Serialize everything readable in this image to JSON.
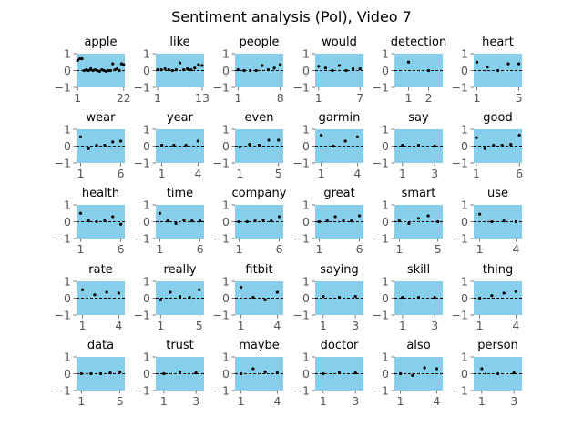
{
  "chart_data": {
    "type": "scatter",
    "title": "Sentiment analysis (Pol), Video 7",
    "colors": {
      "panel_bg": "#87ceeb",
      "point": "#000000",
      "zero_line": "#000000"
    },
    "panels": [
      {
        "title": "apple",
        "ylim": [
          -1,
          1
        ],
        "yticks": [
          -1,
          0,
          1
        ],
        "xlim": [
          0.5,
          22.5
        ],
        "xticks": [
          1,
          22
        ],
        "values": [
          0.6,
          0.7,
          0.7,
          0.0,
          0.05,
          0.0,
          0.1,
          0.0,
          0.05,
          0.0,
          -0.05,
          0.05,
          0.0,
          -0.05,
          0.0,
          0.0,
          0.4,
          0.05,
          0.1,
          0.0,
          0.4,
          0.35
        ]
      },
      {
        "title": "like",
        "ylim": [
          -1,
          1
        ],
        "yticks": [
          -1,
          0,
          1
        ],
        "xlim": [
          0.5,
          13.5
        ],
        "xticks": [
          1,
          13
        ],
        "values": [
          0.05,
          0.05,
          0.1,
          0.05,
          0.0,
          0.05,
          0.45,
          0.05,
          0.1,
          0.05,
          0.15,
          0.35,
          0.3
        ]
      },
      {
        "title": "people",
        "ylim": [
          -1,
          1
        ],
        "yticks": [
          -1,
          0,
          1
        ],
        "xlim": [
          0.5,
          8.5
        ],
        "xticks": [
          1,
          8
        ],
        "values": [
          0.05,
          0.0,
          0.0,
          0.0,
          0.3,
          0.05,
          0.15,
          0.35
        ]
      },
      {
        "title": "would",
        "ylim": [
          -1,
          1
        ],
        "yticks": [
          -1,
          0,
          1
        ],
        "xlim": [
          0.5,
          7.5
        ],
        "xticks": [
          1,
          7
        ],
        "values": [
          0.25,
          0.15,
          0.0,
          0.3,
          0.0,
          0.1,
          0.1
        ]
      },
      {
        "title": "detection",
        "ylim": [
          -1,
          1
        ],
        "yticks": [
          -1,
          0,
          1
        ],
        "xlim": [
          0.3,
          2.7
        ],
        "xticks": [
          1,
          2
        ],
        "values": [
          0.5,
          0.0
        ]
      },
      {
        "title": "heart",
        "ylim": [
          -1,
          1
        ],
        "yticks": [
          -1,
          0,
          1
        ],
        "xlim": [
          0.7,
          5.3
        ],
        "xticks": [
          1,
          5
        ],
        "values": [
          0.5,
          0.2,
          0.0,
          0.4,
          0.4
        ]
      },
      {
        "title": "wear",
        "ylim": [
          -1,
          1
        ],
        "yticks": [
          -1,
          0,
          1
        ],
        "xlim": [
          0.5,
          6.5
        ],
        "xticks": [
          1,
          6
        ],
        "values": [
          0.55,
          -0.15,
          0.05,
          0.05,
          0.25,
          0.3
        ]
      },
      {
        "title": "year",
        "ylim": [
          -1,
          1
        ],
        "yticks": [
          -1,
          0,
          1
        ],
        "xlim": [
          0.5,
          4.5
        ],
        "xticks": [
          1,
          4
        ],
        "values": [
          0.05,
          0.05,
          0.05,
          0.3
        ]
      },
      {
        "title": "even",
        "ylim": [
          -1,
          1
        ],
        "yticks": [
          -1,
          0,
          1
        ],
        "xlim": [
          0.5,
          5.5
        ],
        "xticks": [
          1,
          5
        ],
        "values": [
          -0.05,
          0.1,
          0.05,
          0.35,
          0.35
        ]
      },
      {
        "title": "garmin",
        "ylim": [
          -1,
          1
        ],
        "yticks": [
          -1,
          0,
          1
        ],
        "xlim": [
          0.5,
          4.5
        ],
        "xticks": [
          1,
          4
        ],
        "values": [
          0.65,
          0.0,
          0.3,
          0.55
        ]
      },
      {
        "title": "say",
        "ylim": [
          -1,
          1
        ],
        "yticks": [
          -1,
          0,
          1
        ],
        "xlim": [
          0.5,
          3.5
        ],
        "xticks": [
          1,
          3
        ],
        "values": [
          0.05,
          0.05,
          0.0
        ]
      },
      {
        "title": "good",
        "ylim": [
          -1,
          1
        ],
        "yticks": [
          -1,
          0,
          1
        ],
        "xlim": [
          0.7,
          6.3
        ],
        "xticks": [
          1,
          6
        ],
        "values": [
          0.5,
          -0.15,
          0.05,
          0.05,
          0.1,
          0.65
        ]
      },
      {
        "title": "health",
        "ylim": [
          -1,
          1
        ],
        "yticks": [
          -1,
          0,
          1
        ],
        "xlim": [
          0.5,
          6.5
        ],
        "xticks": [
          1,
          6
        ],
        "values": [
          0.5,
          0.05,
          0.0,
          0.05,
          0.3,
          -0.15
        ]
      },
      {
        "title": "time",
        "ylim": [
          -1,
          1
        ],
        "yticks": [
          -1,
          0,
          1
        ],
        "xlim": [
          0.5,
          6.5
        ],
        "xticks": [
          1,
          6
        ],
        "values": [
          0.5,
          0.05,
          -0.1,
          0.1,
          0.05,
          0.05
        ]
      },
      {
        "title": "company",
        "ylim": [
          -1,
          1
        ],
        "yticks": [
          -1,
          0,
          1
        ],
        "xlim": [
          0.5,
          6.5
        ],
        "xticks": [
          1,
          6
        ],
        "values": [
          0.0,
          0.0,
          0.05,
          0.1,
          0.05,
          0.3
        ]
      },
      {
        "title": "great",
        "ylim": [
          -1,
          1
        ],
        "yticks": [
          -1,
          0,
          1
        ],
        "xlim": [
          0.5,
          6.5
        ],
        "xticks": [
          1,
          6
        ],
        "values": [
          0.0,
          0.05,
          0.3,
          0.05,
          0.05,
          0.35
        ]
      },
      {
        "title": "smart",
        "ylim": [
          -1,
          1
        ],
        "yticks": [
          -1,
          0,
          1
        ],
        "xlim": [
          0.5,
          5.5
        ],
        "xticks": [
          1,
          5
        ],
        "values": [
          0.05,
          -0.1,
          0.2,
          0.35,
          0.0
        ]
      },
      {
        "title": "use",
        "ylim": [
          -1,
          1
        ],
        "yticks": [
          -1,
          0,
          1
        ],
        "xlim": [
          0.5,
          4.5
        ],
        "xticks": [
          1,
          4
        ],
        "values": [
          0.45,
          0.0,
          0.05,
          0.0
        ]
      },
      {
        "title": "rate",
        "ylim": [
          -1,
          1
        ],
        "yticks": [
          -1,
          0,
          1
        ],
        "xlim": [
          0.5,
          4.5
        ],
        "xticks": [
          1,
          4
        ],
        "values": [
          0.5,
          0.2,
          0.35,
          0.3
        ]
      },
      {
        "title": "really",
        "ylim": [
          -1,
          1
        ],
        "yticks": [
          -1,
          0,
          1
        ],
        "xlim": [
          0.5,
          5.5
        ],
        "xticks": [
          1,
          5
        ],
        "values": [
          -0.1,
          0.35,
          0.1,
          0.05,
          0.5
        ]
      },
      {
        "title": "fitbit",
        "ylim": [
          -1,
          1
        ],
        "yticks": [
          -1,
          0,
          1
        ],
        "xlim": [
          0.5,
          4.5
        ],
        "xticks": [
          1,
          4
        ],
        "values": [
          0.65,
          0.05,
          -0.1,
          0.35
        ]
      },
      {
        "title": "saying",
        "ylim": [
          -1,
          1
        ],
        "yticks": [
          -1,
          0,
          1
        ],
        "xlim": [
          0.5,
          3.5
        ],
        "xticks": [
          1,
          3
        ],
        "values": [
          0.1,
          0.05,
          0.1
        ]
      },
      {
        "title": "skill",
        "ylim": [
          -1,
          1
        ],
        "yticks": [
          -1,
          0,
          1
        ],
        "xlim": [
          0.5,
          3.5
        ],
        "xticks": [
          1,
          3
        ],
        "values": [
          0.05,
          0.05,
          0.05
        ]
      },
      {
        "title": "thing",
        "ylim": [
          -1,
          1
        ],
        "yticks": [
          -1,
          0,
          1
        ],
        "xlim": [
          0.5,
          4.5
        ],
        "xticks": [
          1,
          4
        ],
        "values": [
          0.0,
          0.15,
          0.3,
          0.4
        ]
      },
      {
        "title": "data",
        "ylim": [
          -1,
          1
        ],
        "yticks": [
          -1,
          0,
          1
        ],
        "xlim": [
          0.5,
          5.5
        ],
        "xticks": [
          1,
          5
        ],
        "values": [
          0.0,
          0.0,
          0.0,
          0.05,
          0.1
        ]
      },
      {
        "title": "trust",
        "ylim": [
          -1,
          1
        ],
        "yticks": [
          -1,
          0,
          1
        ],
        "xlim": [
          0.5,
          3.5
        ],
        "xticks": [
          1,
          3
        ],
        "values": [
          0.0,
          0.1,
          0.05
        ]
      },
      {
        "title": "maybe",
        "ylim": [
          -1,
          1
        ],
        "yticks": [
          -1,
          0,
          1
        ],
        "xlim": [
          0.5,
          4.5
        ],
        "xticks": [
          1,
          4
        ],
        "values": [
          0.0,
          0.3,
          0.1,
          0.05
        ]
      },
      {
        "title": "doctor",
        "ylim": [
          -1,
          1
        ],
        "yticks": [
          -1,
          0,
          1
        ],
        "xlim": [
          0.5,
          3.5
        ],
        "xticks": [
          1,
          3
        ],
        "values": [
          0.0,
          0.05,
          0.05
        ]
      },
      {
        "title": "also",
        "ylim": [
          -1,
          1
        ],
        "yticks": [
          -1,
          0,
          1
        ],
        "xlim": [
          0.5,
          4.5
        ],
        "xticks": [
          1,
          4
        ],
        "values": [
          0.0,
          -0.1,
          0.35,
          0.3
        ]
      },
      {
        "title": "person",
        "ylim": [
          -1,
          1
        ],
        "yticks": [
          -1,
          0,
          1
        ],
        "xlim": [
          0.5,
          3.5
        ],
        "xticks": [
          1,
          3
        ],
        "values": [
          0.3,
          0.0,
          0.05
        ]
      }
    ]
  }
}
